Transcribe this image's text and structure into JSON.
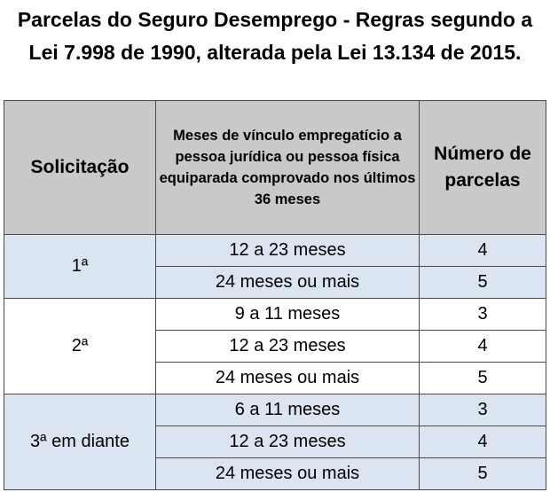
{
  "title": "Parcelas do Seguro Desemprego - Regras segundo a Lei 7.998 de 1990, alterada pela Lei 13.134 de 2015.",
  "headers": {
    "solicitacao": "Solicitação",
    "meses": "Meses de vínculo empregatício a pessoa jurídica ou pessoa física equiparada comprovado nos últimos 36 meses",
    "parcelas": "Número de parcelas"
  },
  "colors": {
    "header_bg": "#c9c9c9",
    "shaded_row_bg": "#dbe5f1",
    "border": "#4a4a4a"
  },
  "groups": [
    {
      "solicitacao": "1ª",
      "rows": [
        {
          "meses": "12 a 23 meses",
          "parcelas": "4"
        },
        {
          "meses": "24 meses ou mais",
          "parcelas": "5"
        }
      ]
    },
    {
      "solicitacao": "2ª",
      "rows": [
        {
          "meses": "9 a 11 meses",
          "parcelas": "3"
        },
        {
          "meses": "12 a 23 meses",
          "parcelas": "4"
        },
        {
          "meses": "24 meses ou mais",
          "parcelas": "5"
        }
      ]
    },
    {
      "solicitacao": "3ª em diante",
      "rows": [
        {
          "meses": "6 a 11 meses",
          "parcelas": "3"
        },
        {
          "meses": "12 a 23 meses",
          "parcelas": "4"
        },
        {
          "meses": "24 meses ou mais",
          "parcelas": "5"
        }
      ]
    }
  ]
}
